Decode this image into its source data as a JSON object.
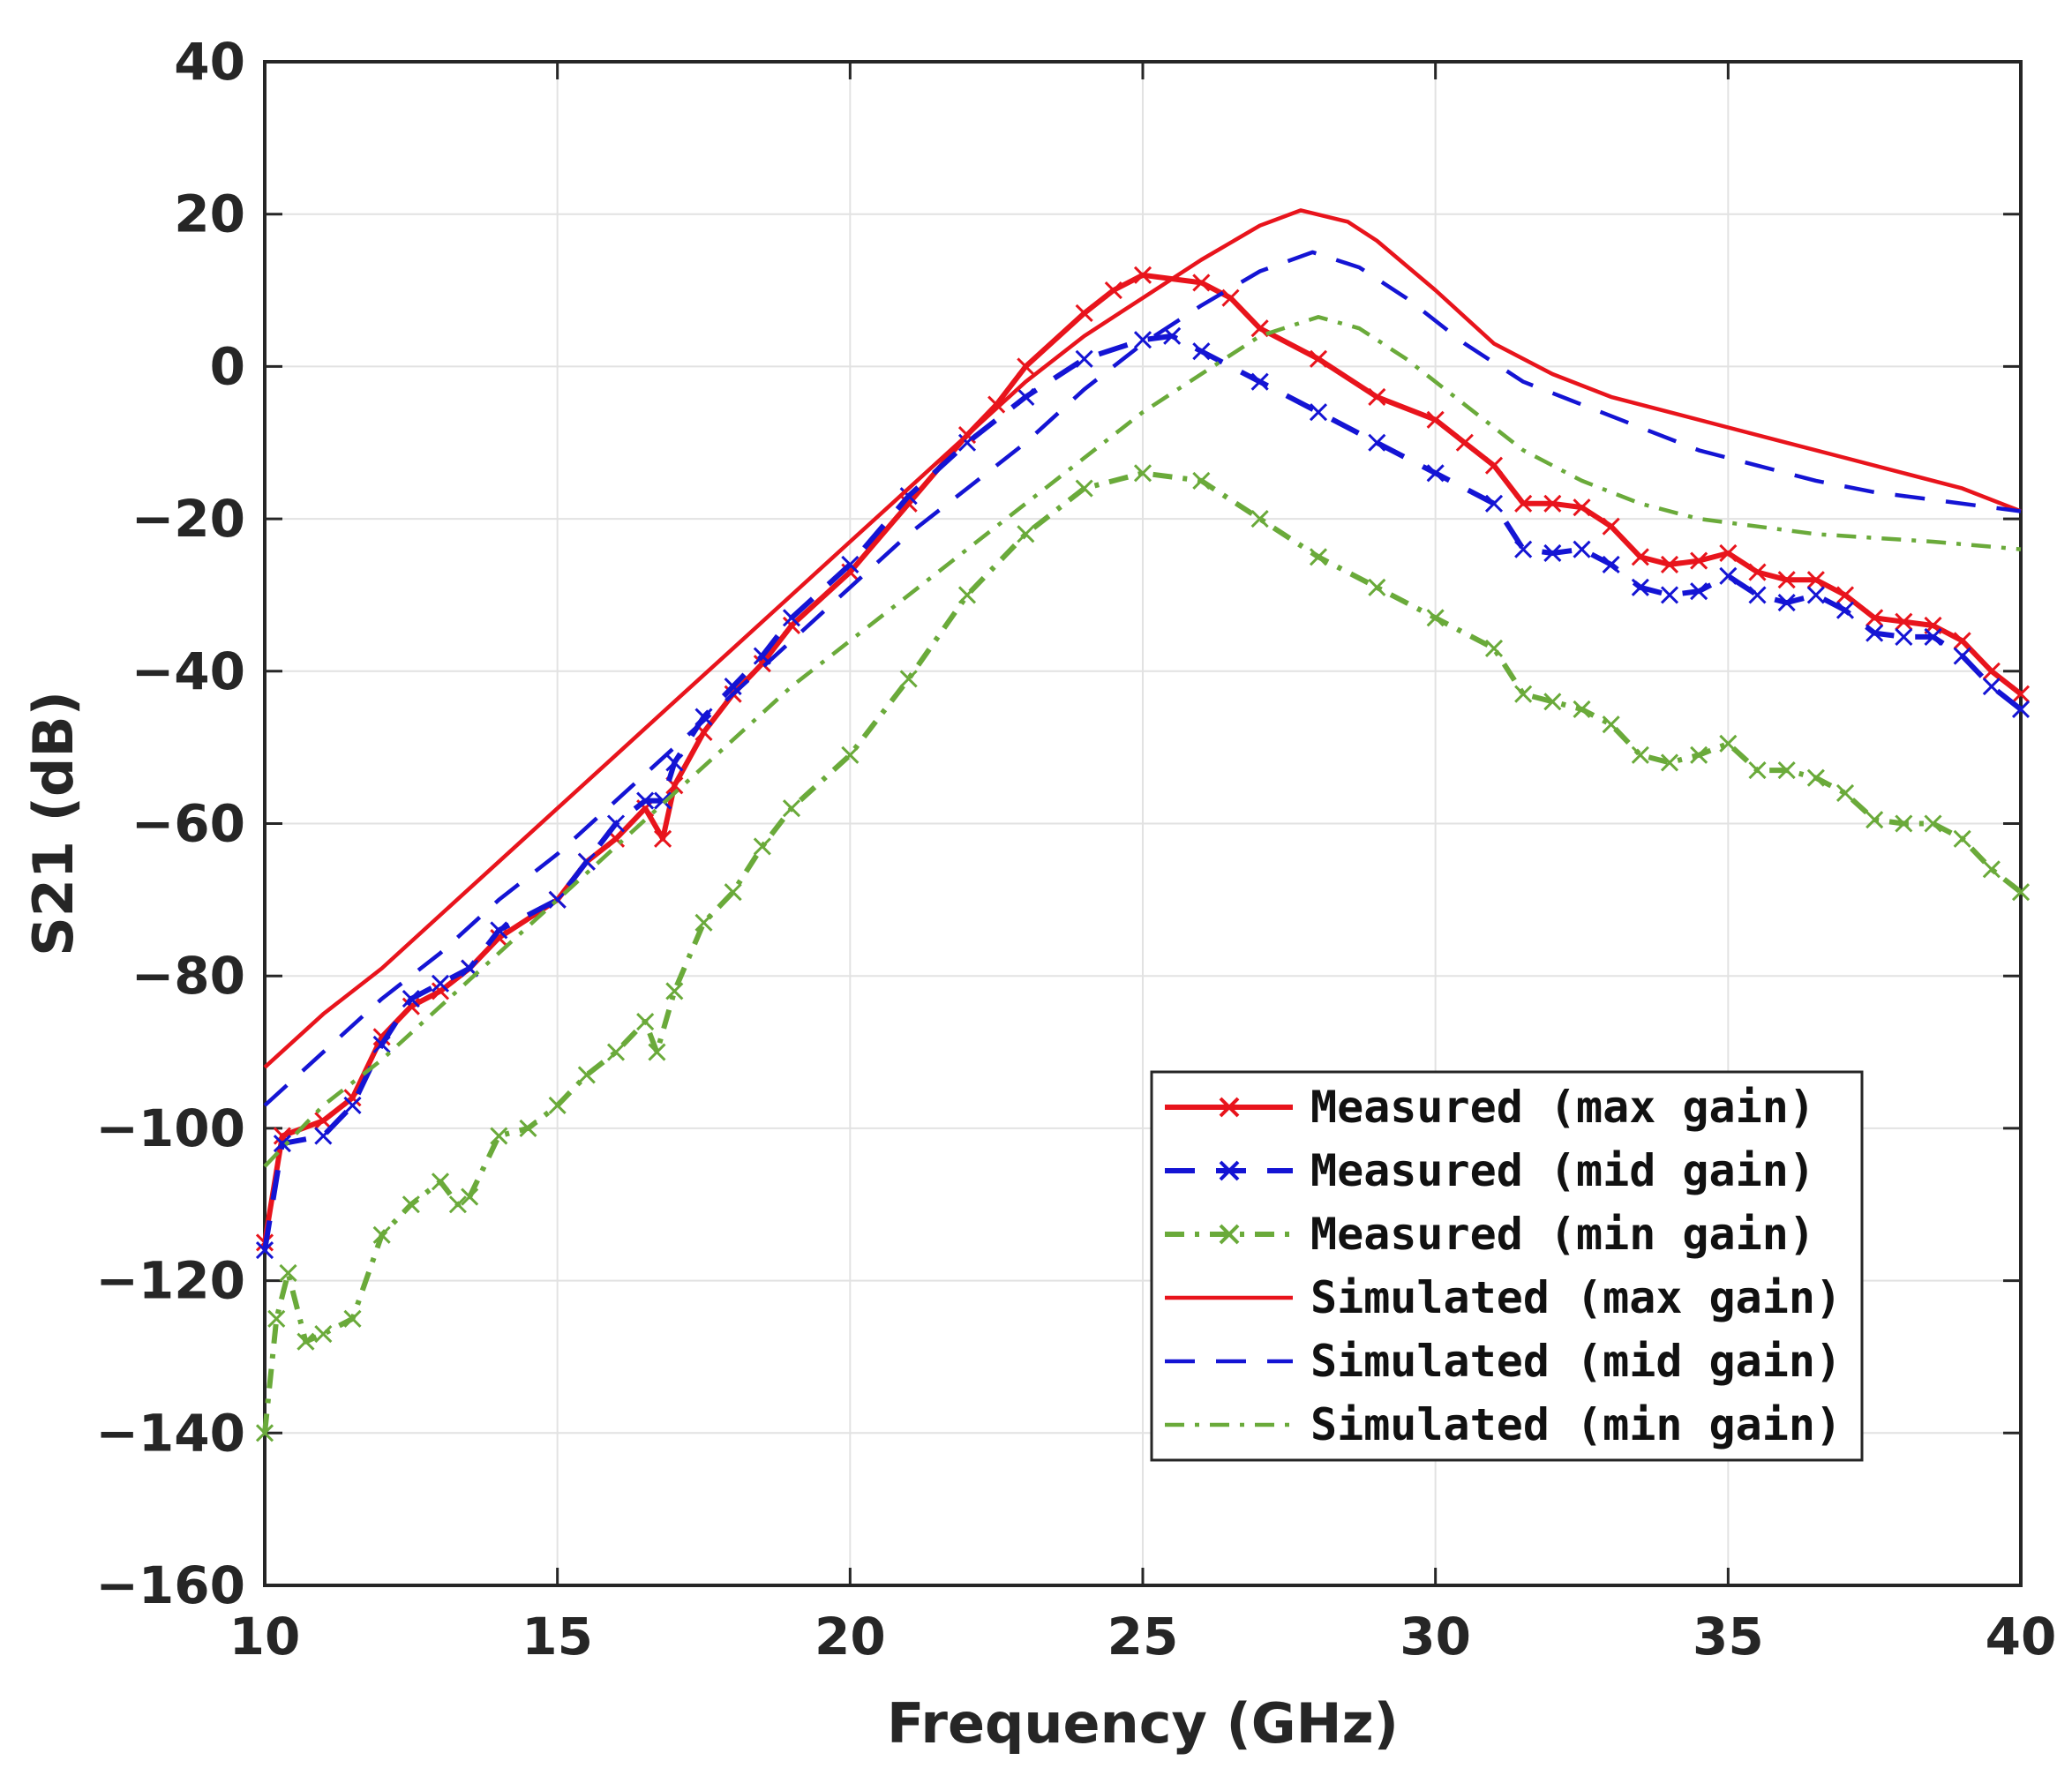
{
  "chart_data": {
    "type": "line",
    "title": "",
    "xlabel": "Frequency (GHz)",
    "ylabel": "S21 (dB)",
    "xlim": [
      10,
      40
    ],
    "ylim": [
      -160,
      40
    ],
    "xticks": [
      10,
      15,
      20,
      25,
      30,
      35,
      40
    ],
    "yticks": [
      40,
      20,
      0,
      -20,
      -40,
      -60,
      -80,
      -100,
      -120,
      -140,
      -160
    ],
    "grid": true,
    "legend_position": "lower-right",
    "series": [
      {
        "name": "Measured (max gain)",
        "color": "#e8141c",
        "style": "solid-marker",
        "points": [
          [
            10,
            -115
          ],
          [
            10.3,
            -101
          ],
          [
            11,
            -99
          ],
          [
            11.5,
            -96
          ],
          [
            12,
            -88
          ],
          [
            12.5,
            -84
          ],
          [
            13,
            -82
          ],
          [
            13.5,
            -79
          ],
          [
            14,
            -75
          ],
          [
            15,
            -70
          ],
          [
            15.5,
            -65
          ],
          [
            16,
            -62
          ],
          [
            16.5,
            -58
          ],
          [
            16.8,
            -62
          ],
          [
            17,
            -55
          ],
          [
            17.5,
            -48
          ],
          [
            18,
            -43
          ],
          [
            18.5,
            -39
          ],
          [
            19,
            -34
          ],
          [
            20,
            -27
          ],
          [
            21,
            -18
          ],
          [
            22,
            -9
          ],
          [
            22.5,
            -5
          ],
          [
            23,
            0
          ],
          [
            24,
            7
          ],
          [
            24.5,
            10
          ],
          [
            25,
            12
          ],
          [
            26,
            11
          ],
          [
            26.5,
            9
          ],
          [
            27,
            5
          ],
          [
            28,
            1
          ],
          [
            29,
            -4
          ],
          [
            30,
            -7
          ],
          [
            30.5,
            -10
          ],
          [
            31,
            -13
          ],
          [
            31.5,
            -18
          ],
          [
            32,
            -18
          ],
          [
            32.5,
            -18.5
          ],
          [
            33,
            -21
          ],
          [
            33.5,
            -25
          ],
          [
            34,
            -26
          ],
          [
            34.5,
            -25.5
          ],
          [
            35,
            -24.5
          ],
          [
            35.5,
            -27
          ],
          [
            36,
            -28
          ],
          [
            36.5,
            -28
          ],
          [
            37,
            -30
          ],
          [
            37.5,
            -33
          ],
          [
            38,
            -33.5
          ],
          [
            38.5,
            -34
          ],
          [
            39,
            -36
          ],
          [
            39.5,
            -40
          ],
          [
            40,
            -43
          ]
        ]
      },
      {
        "name": "Measured (mid gain)",
        "color": "#1414d4",
        "style": "dashed-marker",
        "points": [
          [
            10,
            -116
          ],
          [
            10.3,
            -102
          ],
          [
            11,
            -101
          ],
          [
            11.5,
            -97
          ],
          [
            12,
            -89
          ],
          [
            12.5,
            -83
          ],
          [
            13,
            -81
          ],
          [
            13.5,
            -79
          ],
          [
            14,
            -74
          ],
          [
            15,
            -70
          ],
          [
            15.5,
            -65
          ],
          [
            16,
            -60
          ],
          [
            16.5,
            -57
          ],
          [
            16.8,
            -57
          ],
          [
            17,
            -52
          ],
          [
            17.5,
            -46
          ],
          [
            18,
            -42
          ],
          [
            18.5,
            -38
          ],
          [
            19,
            -33
          ],
          [
            20,
            -26
          ],
          [
            21,
            -17
          ],
          [
            22,
            -10
          ],
          [
            23,
            -4
          ],
          [
            24,
            1
          ],
          [
            25,
            3.5
          ],
          [
            25.5,
            4
          ],
          [
            26,
            2
          ],
          [
            27,
            -2
          ],
          [
            28,
            -6
          ],
          [
            29,
            -10
          ],
          [
            30,
            -14
          ],
          [
            31,
            -18
          ],
          [
            31.5,
            -24
          ],
          [
            32,
            -24.5
          ],
          [
            32.5,
            -24
          ],
          [
            33,
            -26
          ],
          [
            33.5,
            -29
          ],
          [
            34,
            -30
          ],
          [
            34.5,
            -29.5
          ],
          [
            35,
            -27.5
          ],
          [
            35.5,
            -30
          ],
          [
            36,
            -31
          ],
          [
            36.5,
            -30
          ],
          [
            37,
            -32
          ],
          [
            37.5,
            -35
          ],
          [
            38,
            -35.5
          ],
          [
            38.5,
            -35.5
          ],
          [
            39,
            -38
          ],
          [
            39.5,
            -42
          ],
          [
            40,
            -45
          ]
        ]
      },
      {
        "name": "Measured (min gain)",
        "color": "#6aaa3a",
        "style": "dashdot-marker",
        "points": [
          [
            10,
            -140
          ],
          [
            10.2,
            -125
          ],
          [
            10.4,
            -119
          ],
          [
            10.7,
            -128
          ],
          [
            11,
            -127
          ],
          [
            11.5,
            -125
          ],
          [
            12,
            -114
          ],
          [
            12.5,
            -110
          ],
          [
            13,
            -107
          ],
          [
            13.3,
            -110
          ],
          [
            13.5,
            -109
          ],
          [
            14,
            -101
          ],
          [
            14.5,
            -100
          ],
          [
            15,
            -97
          ],
          [
            15.5,
            -93
          ],
          [
            16,
            -90
          ],
          [
            16.5,
            -86
          ],
          [
            16.7,
            -90
          ],
          [
            17,
            -82
          ],
          [
            17.5,
            -73
          ],
          [
            18,
            -69
          ],
          [
            18.5,
            -63
          ],
          [
            19,
            -58
          ],
          [
            20,
            -51
          ],
          [
            21,
            -41
          ],
          [
            22,
            -30
          ],
          [
            23,
            -22
          ],
          [
            24,
            -16
          ],
          [
            25,
            -14
          ],
          [
            26,
            -15
          ],
          [
            27,
            -20
          ],
          [
            28,
            -25
          ],
          [
            29,
            -29
          ],
          [
            30,
            -33
          ],
          [
            31,
            -37
          ],
          [
            31.5,
            -43
          ],
          [
            32,
            -44
          ],
          [
            32.5,
            -45
          ],
          [
            33,
            -47
          ],
          [
            33.5,
            -51
          ],
          [
            34,
            -52
          ],
          [
            34.5,
            -51
          ],
          [
            35,
            -49.5
          ],
          [
            35.5,
            -53
          ],
          [
            36,
            -53
          ],
          [
            36.5,
            -54
          ],
          [
            37,
            -56
          ],
          [
            37.5,
            -59.5
          ],
          [
            38,
            -60
          ],
          [
            38.5,
            -60
          ],
          [
            39,
            -62
          ],
          [
            39.5,
            -66
          ],
          [
            40,
            -69
          ]
        ]
      },
      {
        "name": "Simulated (max gain)",
        "color": "#e8141c",
        "style": "solid",
        "points": [
          [
            10,
            -92
          ],
          [
            11,
            -85
          ],
          [
            12,
            -79
          ],
          [
            13,
            -72
          ],
          [
            14,
            -65
          ],
          [
            15,
            -58
          ],
          [
            16,
            -51
          ],
          [
            17,
            -44
          ],
          [
            18,
            -37
          ],
          [
            19,
            -30
          ],
          [
            20,
            -23
          ],
          [
            21,
            -16
          ],
          [
            22,
            -9
          ],
          [
            23,
            -2
          ],
          [
            24,
            4
          ],
          [
            25,
            9
          ],
          [
            26,
            14
          ],
          [
            27,
            18.5
          ],
          [
            27.7,
            20.5
          ],
          [
            28.5,
            19
          ],
          [
            29,
            16.5
          ],
          [
            30,
            10
          ],
          [
            31,
            3
          ],
          [
            32,
            -1
          ],
          [
            33,
            -4
          ],
          [
            34,
            -6
          ],
          [
            35,
            -8
          ],
          [
            36,
            -10
          ],
          [
            37,
            -12
          ],
          [
            38,
            -14
          ],
          [
            39,
            -16
          ],
          [
            40,
            -19
          ]
        ]
      },
      {
        "name": "Simulated (mid gain)",
        "color": "#1414d4",
        "style": "dashed",
        "points": [
          [
            10,
            -97
          ],
          [
            11,
            -90
          ],
          [
            12,
            -83
          ],
          [
            13,
            -77
          ],
          [
            14,
            -70
          ],
          [
            15,
            -64
          ],
          [
            16,
            -57
          ],
          [
            17,
            -50
          ],
          [
            18,
            -43
          ],
          [
            19,
            -36
          ],
          [
            20,
            -29
          ],
          [
            21,
            -22
          ],
          [
            22,
            -16
          ],
          [
            23,
            -10
          ],
          [
            24,
            -3
          ],
          [
            25,
            3
          ],
          [
            26,
            8
          ],
          [
            27,
            12.5
          ],
          [
            27.9,
            15
          ],
          [
            28.7,
            13
          ],
          [
            29.5,
            9
          ],
          [
            30.5,
            3
          ],
          [
            31.5,
            -2
          ],
          [
            32.5,
            -5
          ],
          [
            33.5,
            -8
          ],
          [
            34.5,
            -11
          ],
          [
            35.5,
            -13
          ],
          [
            36.5,
            -15
          ],
          [
            37.5,
            -16.5
          ],
          [
            38.5,
            -17.5
          ],
          [
            40,
            -19
          ]
        ]
      },
      {
        "name": "Simulated (min gain)",
        "color": "#6aaa3a",
        "style": "dashdot",
        "points": [
          [
            10,
            -105
          ],
          [
            11,
            -97
          ],
          [
            12,
            -91
          ],
          [
            13,
            -84
          ],
          [
            14,
            -77
          ],
          [
            15,
            -70
          ],
          [
            16,
            -63
          ],
          [
            17,
            -56
          ],
          [
            18,
            -49
          ],
          [
            19,
            -42
          ],
          [
            20,
            -36
          ],
          [
            21,
            -30
          ],
          [
            22,
            -24
          ],
          [
            23,
            -18
          ],
          [
            24,
            -12
          ],
          [
            25,
            -6
          ],
          [
            26,
            -1
          ],
          [
            27,
            4
          ],
          [
            28,
            6.5
          ],
          [
            28.7,
            5
          ],
          [
            29.5,
            1
          ],
          [
            30.5,
            -5
          ],
          [
            31.5,
            -11
          ],
          [
            32.5,
            -15
          ],
          [
            33.5,
            -18
          ],
          [
            34.5,
            -20
          ],
          [
            35.5,
            -21
          ],
          [
            36.5,
            -22
          ],
          [
            37.5,
            -22.5
          ],
          [
            38.5,
            -23
          ],
          [
            40,
            -24
          ]
        ]
      }
    ]
  }
}
